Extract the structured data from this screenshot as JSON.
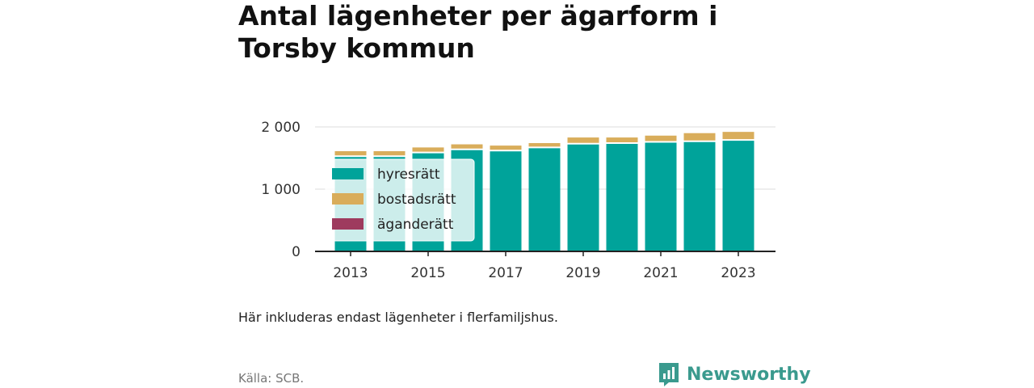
{
  "title": "Antal lägenheter per ägarform i Torsby kommun",
  "note": "Här inkluderas endast lägenheter i flerfamiljshus.",
  "source": "Källa: SCB.",
  "brand": {
    "name": "Newsworthy",
    "icon": "bar-chart-speech-bubble-icon",
    "color": "#3a9a8e"
  },
  "chart_data": {
    "type": "bar",
    "stacked": true,
    "categories": [
      "2013",
      "2014",
      "2015",
      "2016",
      "2017",
      "2018",
      "2019",
      "2020",
      "2021",
      "2022",
      "2023"
    ],
    "x_tick_labels": [
      "2013",
      "2015",
      "2017",
      "2019",
      "2021",
      "2023"
    ],
    "series": [
      {
        "name": "hyresrätt",
        "color": "#00a39a",
        "values": [
          1530,
          1530,
          1590,
          1640,
          1620,
          1670,
          1730,
          1740,
          1760,
          1770,
          1790
        ]
      },
      {
        "name": "bostadsrätt",
        "color": "#d9ad5b",
        "values": [
          80,
          80,
          80,
          80,
          80,
          70,
          100,
          90,
          100,
          130,
          130
        ]
      },
      {
        "name": "äganderätt",
        "color": "#9e3b5e",
        "values": [
          0,
          0,
          0,
          0,
          0,
          0,
          0,
          0,
          0,
          0,
          0
        ]
      }
    ],
    "ylim": [
      0,
      2000
    ],
    "y_ticks": [
      0,
      1000,
      2000
    ],
    "y_tick_labels": [
      "0",
      "1 000",
      "2 000"
    ],
    "xlabel": "",
    "ylabel": "",
    "grid": true,
    "legend_position": "top-left"
  }
}
